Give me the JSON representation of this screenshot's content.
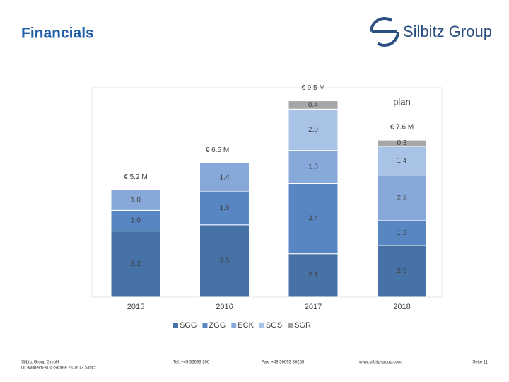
{
  "header": {
    "title": "Financials",
    "logo": "Silbitz Group"
  },
  "chart_data": {
    "type": "stacked_bar",
    "categories": [
      "2015",
      "2016",
      "2017",
      "2018"
    ],
    "series": [
      {
        "name": "SGG",
        "color": "#4672a6",
        "values": [
          3.2,
          3.5,
          2.1,
          2.5
        ],
        "value_labels": [
          "3.2",
          "3.5",
          "2.1",
          "2.5"
        ]
      },
      {
        "name": "ZGG",
        "color": "#5886c3",
        "values": [
          1.0,
          1.6,
          3.4,
          1.2
        ],
        "value_labels": [
          "1.0",
          "1.6",
          "3.4",
          "1.2"
        ]
      },
      {
        "name": "ECK",
        "color": "#86a9d9",
        "values": [
          1.0,
          1.4,
          1.6,
          2.2
        ],
        "value_labels": [
          "1.0",
          "1.4",
          "1.6",
          "2.2"
        ]
      },
      {
        "name": "SGS",
        "color": "#a9c3e6",
        "values": [
          null,
          null,
          2.0,
          1.4
        ],
        "value_labels": [
          null,
          null,
          "2.0",
          "1.4"
        ]
      },
      {
        "name": "SGR",
        "color": "#a6a6a6",
        "values": [
          null,
          null,
          0.4,
          0.3
        ],
        "value_labels": [
          null,
          null,
          "0.4",
          "0.3"
        ]
      }
    ],
    "totals": {
      "values": [
        5.2,
        6.5,
        9.5,
        7.6
      ],
      "value_labels": [
        "€ 5.2 M",
        "€ 6.5 M",
        "€ 9.5 M",
        "€ 7.6 M"
      ]
    },
    "annotations": [
      {
        "text": "plan",
        "category": "2018"
      }
    ]
  },
  "footer": {
    "company": "Silbitz Group GmbH",
    "address": "Dr.-Wilhelm-Külz-Straße 2 07613 Silbitz",
    "tel": "Tel: +49 36693 300",
    "fax": "Fax: +49 36693 30255",
    "web": "www.silbitz-group.com",
    "page": "Seite 11"
  }
}
